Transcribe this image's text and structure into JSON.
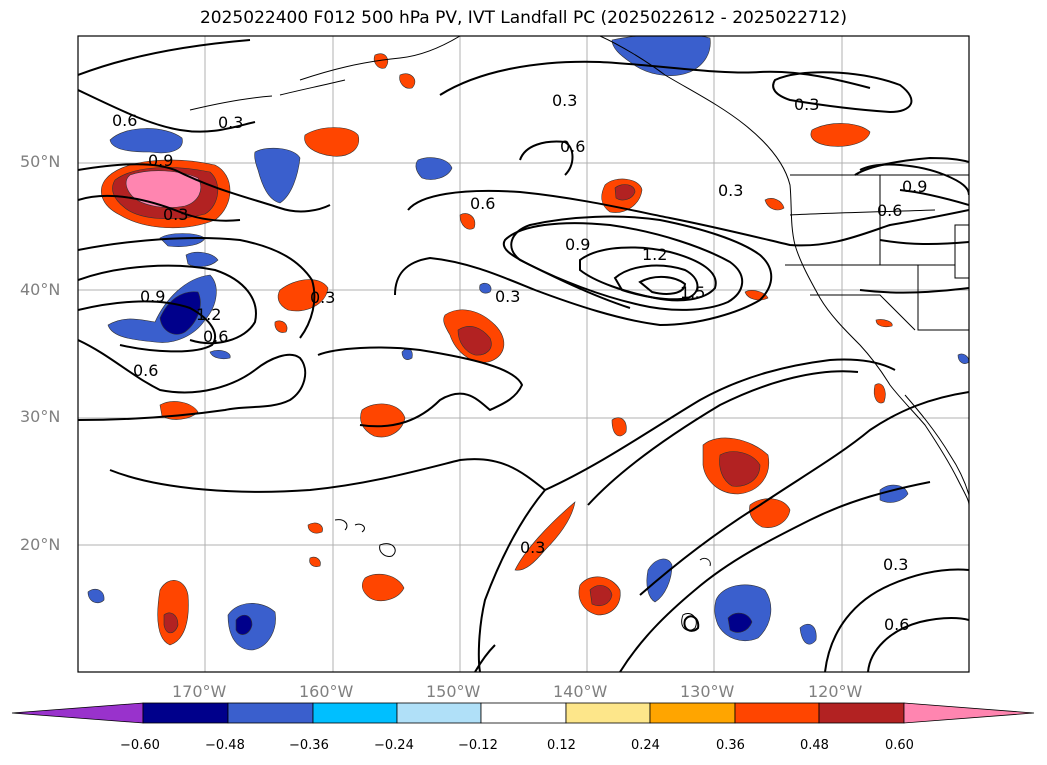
{
  "title": "2025022400 F012 500 hPa PV, IVT Landfall PC (2025022612 - 2025022712)",
  "map": {
    "projection": "equirectangular",
    "lon_range": [
      -180,
      -110
    ],
    "lat_range": [
      10,
      60
    ],
    "grid": true,
    "lat_labels": [
      "50°N",
      "40°N",
      "30°N",
      "20°N"
    ],
    "lon_labels": [
      "170°W",
      "160°W",
      "150°W",
      "140°W",
      "130°W",
      "120°W"
    ]
  },
  "contour_labels": [
    "0.6",
    "0.3",
    "0.9",
    "0.3",
    "0.9",
    "1.2",
    "0.6",
    "0.6",
    "0.3",
    "0.6",
    "0.3",
    "0.6",
    "0.3",
    "0.9",
    "1.2",
    "1.5",
    "0.3",
    "0.3",
    "0.9",
    "0.6",
    "0.3",
    "0.3",
    "0.6"
  ],
  "colorbar": {
    "ticks": [
      "−0.60",
      "−0.48",
      "−0.36",
      "−0.24",
      "−0.12",
      "0.12",
      "0.24",
      "0.36",
      "0.48",
      "0.60"
    ],
    "colors": [
      "#9932cc",
      "#00008b",
      "#3a5fcd",
      "#00bfff",
      "#b0e0f8",
      "#ffffff",
      "#fde68a",
      "#ffa500",
      "#ff4500",
      "#b22222",
      "#ff85b0"
    ],
    "extend": "both"
  }
}
